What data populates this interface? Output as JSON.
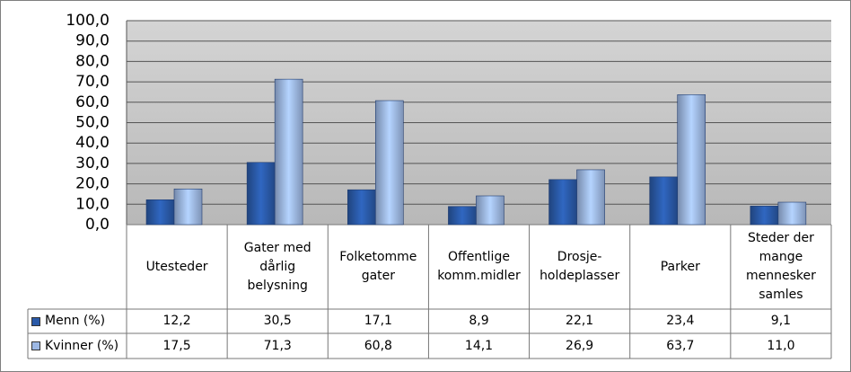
{
  "chart_data": {
    "type": "bar",
    "categories": [
      "Utesteder",
      "Gater med dårlig belysning",
      "Folketomme gater",
      "Offentlige komm.midler",
      "Drosje-holdeplasser",
      "Parker",
      "Steder der mange mennesker samles"
    ],
    "series": [
      {
        "name": "Menn (%)",
        "color": "#2a5aa8",
        "values": [
          12.2,
          30.5,
          17.1,
          8.9,
          22.1,
          23.4,
          9.1
        ],
        "value_labels": [
          "12,2",
          "30,5",
          "17,1",
          "8,9",
          "22,1",
          "23,4",
          "9,1"
        ]
      },
      {
        "name": "Kvinner (%)",
        "color": "#9db8e4",
        "values": [
          17.5,
          71.3,
          60.8,
          14.1,
          26.9,
          63.7,
          11.0
        ],
        "value_labels": [
          "17,5",
          "71,3",
          "60,8",
          "14,1",
          "26,9",
          "63,7",
          "11,0"
        ]
      }
    ],
    "ylim": [
      0,
      100
    ],
    "yticks": [
      {
        "value": 0,
        "label": "0,0"
      },
      {
        "value": 10,
        "label": "10,0"
      },
      {
        "value": 20,
        "label": "20,0"
      },
      {
        "value": 30,
        "label": "30,0"
      },
      {
        "value": 40,
        "label": "40,0"
      },
      {
        "value": 50,
        "label": "50,0"
      },
      {
        "value": 60,
        "label": "60,0"
      },
      {
        "value": 70,
        "label": "70,0"
      },
      {
        "value": 80,
        "label": "80,0"
      },
      {
        "value": 90,
        "label": "90,0"
      },
      {
        "value": 100,
        "label": "100,0"
      }
    ],
    "grid": true
  }
}
